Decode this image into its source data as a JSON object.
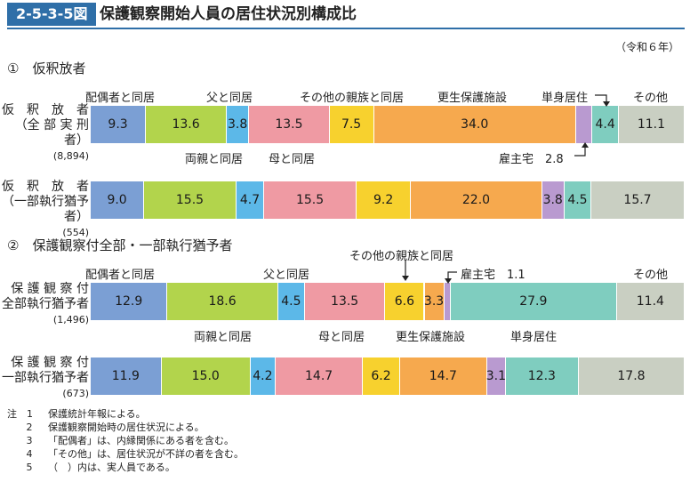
{
  "header": {
    "figure_no": "2-5-3-5図",
    "title": "保護観察開始人員の居住状況別構成比",
    "era": "（令和６年）"
  },
  "sections": [
    {
      "label": "①　仮釈放者"
    },
    {
      "label": "②　保護観察付全部・一部執行猶予者"
    }
  ],
  "notes": [
    {
      "num": "注　1",
      "text": "保護統計年報による。"
    },
    {
      "num": "2",
      "text": "保護観察開始時の居住状況による。"
    },
    {
      "num": "3",
      "text": "「配偶者」は、内縁関係にある者を含む。"
    },
    {
      "num": "4",
      "text": "「その他」は、居住状況が不詳の者を含む。"
    },
    {
      "num": "5",
      "text": "（　）内は、実人員である。"
    }
  ],
  "colors": [
    "#7b9fd4",
    "#b2d44c",
    "#5cb8e8",
    "#ef9aa3",
    "#f7d12e",
    "#f6a94e",
    "#b99ad0",
    "#7fcdbf",
    "#c9cfc2"
  ],
  "chart_data": {
    "type": "bar",
    "stacked": "100%",
    "orientation": "horizontal",
    "categories": [
      "配偶者と同居",
      "両親と同居",
      "父と同居",
      "母と同居",
      "その他の親族と同居",
      "更生保護施設",
      "雇主宅",
      "単身居住",
      "その他"
    ],
    "category_labels_shown": {
      "p1_top": [
        "配偶者と同居",
        "父と同居",
        "その他の親族と同居",
        "更生保護施設",
        "単身居住",
        "その他"
      ],
      "p1_bottom": [
        "両親と同居",
        "母と同居",
        "雇主宅　2.8"
      ],
      "p2_top": [
        "配偶者と同居",
        "父と同居",
        "その他の親族と同居",
        "雇主宅　1.1",
        "その他"
      ],
      "p2_bottom": [
        "両親と同居",
        "母と同居",
        "更生保護施設",
        "単身居住"
      ]
    },
    "rows": [
      {
        "line1": "仮　釈　放　者",
        "line2": "（全 部 実 刑 者）",
        "n": "(8,894)",
        "values": [
          9.3,
          13.6,
          3.8,
          13.5,
          7.5,
          34.0,
          2.8,
          4.4,
          11.1
        ],
        "labels": [
          "9.3",
          "13.6",
          "3.8",
          "13.5",
          "7.5",
          "34.0",
          "",
          "4.4",
          "11.1"
        ]
      },
      {
        "line1": "仮　釈　放　者",
        "line2": "（一部執行猶予者）",
        "n": "(554)",
        "values": [
          9.0,
          15.5,
          4.7,
          15.5,
          9.2,
          22.0,
          3.8,
          4.5,
          15.7
        ],
        "labels": [
          "9.0",
          "15.5",
          "4.7",
          "15.5",
          "9.2",
          "22.0",
          "3.8",
          "4.5",
          "15.7"
        ]
      },
      {
        "line1": "保 護 観 察 付",
        "line2": "全部執行猶予者",
        "n": "(1,496)",
        "values": [
          12.9,
          18.6,
          4.5,
          13.5,
          6.6,
          3.3,
          1.1,
          27.9,
          11.4
        ],
        "labels": [
          "12.9",
          "18.6",
          "4.5",
          "13.5",
          "6.6",
          "3.3",
          "",
          "27.9",
          "11.4"
        ]
      },
      {
        "line1": "保 護 観 察 付",
        "line2": "一部執行猶予者",
        "n": "(673)",
        "values": [
          11.9,
          15.0,
          4.2,
          14.7,
          6.2,
          14.7,
          3.1,
          12.3,
          17.8
        ],
        "labels": [
          "11.9",
          "15.0",
          "4.2",
          "14.7",
          "6.2",
          "14.7",
          "3.1",
          "12.3",
          "17.8"
        ]
      }
    ]
  }
}
